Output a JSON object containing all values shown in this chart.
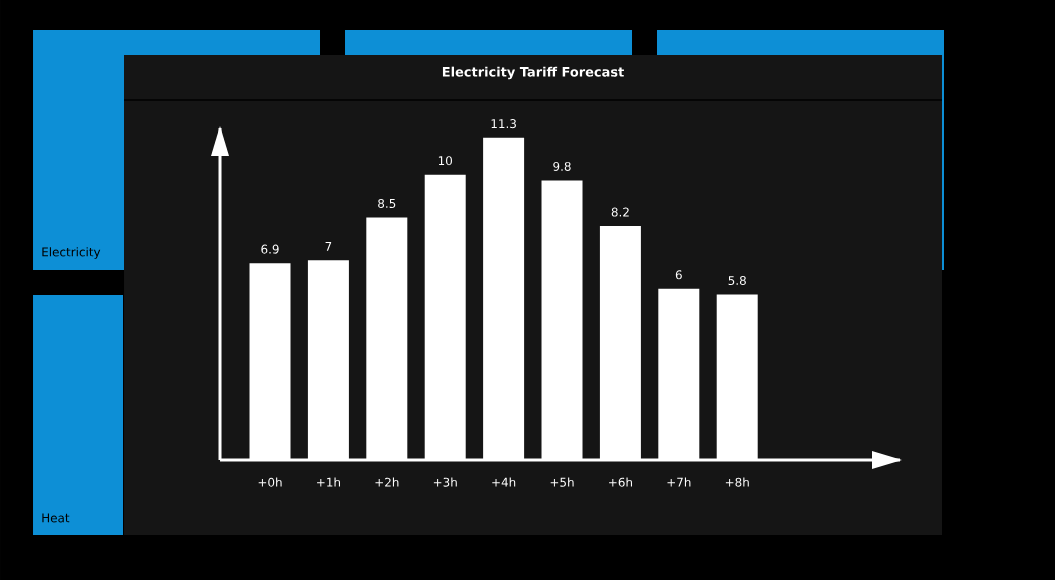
{
  "chart_data": {
    "type": "bar",
    "title": "Electricity Tariff Forecast",
    "categories": [
      "+0h",
      "+1h",
      "+2h",
      "+3h",
      "+4h",
      "+5h",
      "+6h",
      "+7h",
      "+8h"
    ],
    "values": [
      6.9,
      7,
      8.5,
      10,
      11.3,
      9.8,
      8.2,
      6,
      5.8
    ],
    "color": "#ffffff",
    "data_labels": true,
    "annotations": [
      "Electricity",
      "Heat"
    ]
  }
}
